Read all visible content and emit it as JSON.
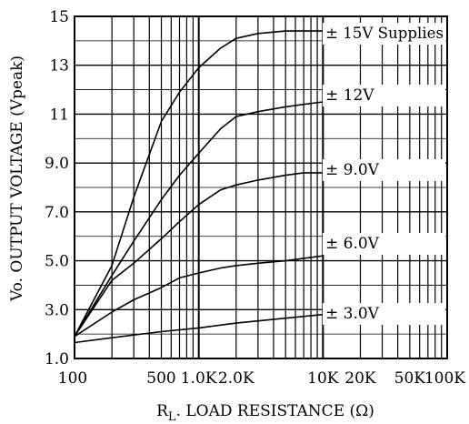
{
  "chart_data": {
    "type": "line",
    "xlabel_main": "R",
    "xlabel_sub": "L",
    "xlabel_rest": ". LOAD RESISTANCE (Ω)",
    "ylabel": "Vo. OUTPUT VOLTAGE (Vpeak)",
    "x_scale": "log",
    "xlim": [
      100,
      100000
    ],
    "ylim": [
      1.0,
      15
    ],
    "grid": true,
    "x_ticks": [
      {
        "value": 100,
        "label": "100"
      },
      {
        "value": 500,
        "label": "500"
      },
      {
        "value": 1000,
        "label": "1.0K"
      },
      {
        "value": 2000,
        "label": "2.0K"
      },
      {
        "value": 10000,
        "label": "10K"
      },
      {
        "value": 20000,
        "label": "20K"
      },
      {
        "value": 50000,
        "label": "50K"
      },
      {
        "value": 100000,
        "label": "100K"
      }
    ],
    "y_ticks": [
      {
        "value": 15,
        "label": "15"
      },
      {
        "value": 13,
        "label": "13"
      },
      {
        "value": 11,
        "label": "11"
      },
      {
        "value": 9,
        "label": "9.0"
      },
      {
        "value": 7,
        "label": "7.0"
      },
      {
        "value": 5,
        "label": "5.0"
      },
      {
        "value": 3,
        "label": "3.0"
      },
      {
        "value": 1,
        "label": "1.0"
      }
    ],
    "series": [
      {
        "name": "± 15V Supplies",
        "x": [
          100,
          200,
          300,
          500,
          700,
          1000,
          1500,
          2000,
          3000,
          5000,
          7000,
          10000
        ],
        "y": [
          1.9,
          4.8,
          7.6,
          10.7,
          11.9,
          12.9,
          13.7,
          14.1,
          14.3,
          14.4,
          14.4,
          14.4
        ]
      },
      {
        "name": "± 12V",
        "x": [
          100,
          200,
          300,
          500,
          700,
          1000,
          1500,
          2000,
          3000,
          5000,
          7000,
          10000
        ],
        "y": [
          1.9,
          4.4,
          5.8,
          7.5,
          8.5,
          9.4,
          10.4,
          10.9,
          11.1,
          11.3,
          11.4,
          11.5
        ]
      },
      {
        "name": "± 9.0V",
        "x": [
          100,
          200,
          300,
          500,
          700,
          1000,
          1500,
          2000,
          3000,
          5000,
          7000,
          10000
        ],
        "y": [
          1.9,
          4.2,
          4.9,
          5.9,
          6.6,
          7.3,
          7.9,
          8.1,
          8.3,
          8.5,
          8.6,
          8.6
        ]
      },
      {
        "name": "± 6.0V",
        "x": [
          100,
          200,
          300,
          500,
          700,
          1000,
          1500,
          2000,
          3000,
          5000,
          7000,
          10000
        ],
        "y": [
          1.9,
          2.9,
          3.4,
          3.9,
          4.3,
          4.5,
          4.7,
          4.8,
          4.9,
          5.0,
          5.1,
          5.2
        ]
      },
      {
        "name": "± 3.0V",
        "x": [
          100,
          200,
          500,
          1000,
          2000,
          5000,
          10000
        ],
        "y": [
          1.65,
          1.85,
          2.1,
          2.25,
          2.45,
          2.65,
          2.8
        ]
      }
    ]
  }
}
